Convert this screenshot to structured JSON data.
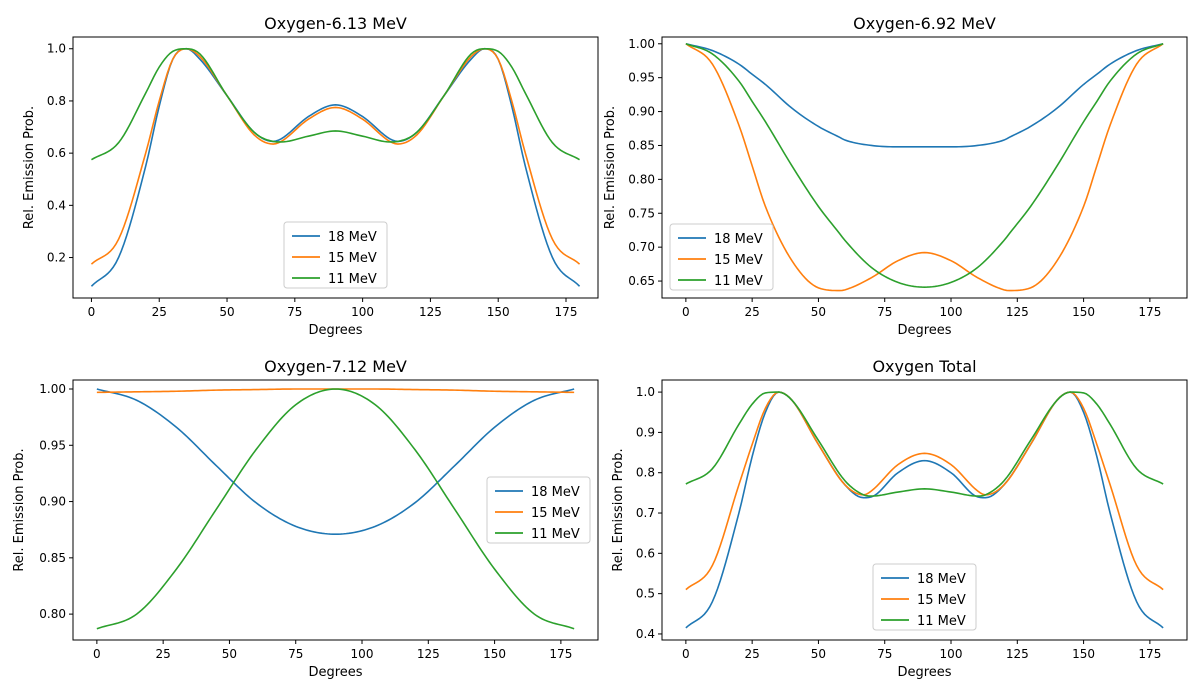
{
  "colors": {
    "series_18": "#1f77b4",
    "series_15": "#ff7f0e",
    "series_11": "#2ca02c",
    "axes": "#000000",
    "legend_border": "#cccccc"
  },
  "chart_data": [
    {
      "type": "line",
      "title": "Oxygen-6.13 MeV",
      "xlabel": "Degrees",
      "ylabel": "Rel. Emission Prob.",
      "xlim": [
        -6.8,
        186.8
      ],
      "ylim": [
        0.045,
        1.045
      ],
      "xticks": [
        0,
        25,
        50,
        75,
        100,
        125,
        150,
        175
      ],
      "yticks": [
        0.2,
        0.4,
        0.6,
        0.8,
        1.0
      ],
      "ytick_labels": [
        "0.2",
        "0.4",
        "0.6",
        "0.8",
        "1.0"
      ],
      "legend": {
        "location": "lower center",
        "entries": [
          "18 MeV",
          "15 MeV",
          "11 MeV"
        ]
      },
      "x": [
        0,
        10,
        20,
        25,
        30,
        35,
        40,
        50,
        60,
        67,
        70,
        80,
        90,
        100,
        110,
        113,
        120,
        130,
        140,
        145,
        150,
        155,
        160,
        170,
        180
      ],
      "series": [
        {
          "name": "18 MeV",
          "values": [
            0.09,
            0.2,
            0.55,
            0.78,
            0.96,
            1.0,
            0.96,
            0.82,
            0.68,
            0.645,
            0.655,
            0.74,
            0.785,
            0.74,
            0.655,
            0.645,
            0.68,
            0.82,
            0.96,
            1.0,
            0.96,
            0.78,
            0.55,
            0.2,
            0.09
          ]
        },
        {
          "name": "15 MeV",
          "values": [
            0.175,
            0.27,
            0.6,
            0.8,
            0.96,
            1.0,
            0.97,
            0.82,
            0.67,
            0.635,
            0.645,
            0.73,
            0.775,
            0.73,
            0.645,
            0.635,
            0.67,
            0.82,
            0.97,
            1.0,
            0.96,
            0.8,
            0.6,
            0.27,
            0.175
          ]
        },
        {
          "name": "11 MeV",
          "values": [
            0.575,
            0.64,
            0.83,
            0.93,
            0.99,
            1.0,
            0.98,
            0.82,
            0.68,
            0.645,
            0.643,
            0.665,
            0.685,
            0.665,
            0.643,
            0.645,
            0.68,
            0.82,
            0.98,
            1.0,
            0.99,
            0.93,
            0.83,
            0.64,
            0.575
          ]
        }
      ]
    },
    {
      "type": "line",
      "title": "Oxygen-6.92 MeV",
      "xlabel": "Degrees",
      "ylabel": "Rel. Emission Prob.",
      "xlim": [
        -9,
        189
      ],
      "ylim": [
        0.625,
        1.01
      ],
      "xticks": [
        0,
        25,
        50,
        75,
        100,
        125,
        150,
        175
      ],
      "yticks": [
        0.65,
        0.7,
        0.75,
        0.8,
        0.85,
        0.9,
        0.95,
        1.0
      ],
      "ytick_labels": [
        "0.65",
        "0.70",
        "0.75",
        "0.80",
        "0.85",
        "0.90",
        "0.95",
        "1.00"
      ],
      "legend": {
        "location": "lower left",
        "entries": [
          "18 MeV",
          "15 MeV",
          "11 MeV"
        ]
      },
      "x": [
        0,
        10,
        20,
        25,
        30,
        40,
        50,
        58,
        60,
        70,
        80,
        90,
        100,
        110,
        120,
        122,
        130,
        140,
        150,
        155,
        160,
        170,
        180
      ],
      "series": [
        {
          "name": "18 MeV",
          "values": [
            1.0,
            0.99,
            0.97,
            0.955,
            0.94,
            0.905,
            0.878,
            0.862,
            0.858,
            0.85,
            0.848,
            0.848,
            0.848,
            0.85,
            0.858,
            0.862,
            0.878,
            0.905,
            0.94,
            0.955,
            0.97,
            0.99,
            1.0
          ]
        },
        {
          "name": "15 MeV",
          "values": [
            1.0,
            0.97,
            0.88,
            0.82,
            0.76,
            0.68,
            0.64,
            0.636,
            0.637,
            0.655,
            0.68,
            0.692,
            0.68,
            0.655,
            0.637,
            0.636,
            0.64,
            0.68,
            0.76,
            0.82,
            0.88,
            0.97,
            1.0
          ]
        },
        {
          "name": "11 MeV",
          "values": [
            1.0,
            0.985,
            0.945,
            0.915,
            0.885,
            0.82,
            0.76,
            0.72,
            0.71,
            0.67,
            0.648,
            0.641,
            0.648,
            0.67,
            0.71,
            0.72,
            0.76,
            0.82,
            0.885,
            0.915,
            0.945,
            0.985,
            1.0
          ]
        }
      ]
    },
    {
      "type": "line",
      "title": "Oxygen-7.12 MeV",
      "xlabel": "Degrees",
      "ylabel": "Rel. Emission Prob.",
      "xlim": [
        -9,
        189
      ],
      "ylim": [
        0.777,
        1.008
      ],
      "xticks": [
        0,
        25,
        50,
        75,
        100,
        125,
        150,
        175
      ],
      "yticks": [
        0.8,
        0.85,
        0.9,
        0.95,
        1.0
      ],
      "ytick_labels": [
        "0.80",
        "0.85",
        "0.90",
        "0.95",
        "1.00"
      ],
      "legend": {
        "location": "center right",
        "entries": [
          "18 MeV",
          "15 MeV",
          "11 MeV"
        ]
      },
      "x": [
        0,
        15,
        30,
        45,
        60,
        75,
        90,
        105,
        120,
        135,
        150,
        165,
        180
      ],
      "series": [
        {
          "name": "18 MeV",
          "values": [
            1.0,
            0.99,
            0.966,
            0.932,
            0.899,
            0.878,
            0.871,
            0.878,
            0.899,
            0.932,
            0.966,
            0.99,
            1.0
          ]
        },
        {
          "name": "15 MeV",
          "values": [
            0.997,
            0.9975,
            0.998,
            0.999,
            0.9995,
            1.0,
            1.0,
            1.0,
            0.9995,
            0.999,
            0.998,
            0.9975,
            0.997
          ]
        },
        {
          "name": "11 MeV",
          "values": [
            0.787,
            0.8,
            0.84,
            0.893,
            0.946,
            0.986,
            1.0,
            0.986,
            0.946,
            0.893,
            0.84,
            0.8,
            0.787
          ]
        }
      ]
    },
    {
      "type": "line",
      "title": "Oxygen Total",
      "xlabel": "Degrees",
      "ylabel": "Rel. Emission Prob.",
      "xlim": [
        -9,
        189
      ],
      "ylim": [
        0.385,
        1.03
      ],
      "xticks": [
        0,
        25,
        50,
        75,
        100,
        125,
        150,
        175
      ],
      "yticks": [
        0.4,
        0.5,
        0.6,
        0.7,
        0.8,
        0.9,
        1.0
      ],
      "ytick_labels": [
        "0.4",
        "0.5",
        "0.6",
        "0.7",
        "0.8",
        "0.9",
        "1.0"
      ],
      "legend": {
        "location": "lower center",
        "entries": [
          "18 MeV",
          "15 MeV",
          "11 MeV"
        ]
      },
      "x": [
        0,
        10,
        20,
        25,
        30,
        35,
        40,
        50,
        60,
        67,
        70,
        80,
        90,
        100,
        110,
        113,
        120,
        130,
        140,
        145,
        150,
        155,
        160,
        170,
        180
      ],
      "series": [
        {
          "name": "18 MeV",
          "values": [
            0.415,
            0.48,
            0.7,
            0.84,
            0.95,
            1.0,
            0.98,
            0.87,
            0.77,
            0.738,
            0.74,
            0.8,
            0.83,
            0.8,
            0.74,
            0.738,
            0.77,
            0.87,
            0.98,
            1.0,
            0.95,
            0.84,
            0.7,
            0.48,
            0.415
          ]
        },
        {
          "name": "15 MeV",
          "values": [
            0.51,
            0.57,
            0.77,
            0.87,
            0.96,
            1.0,
            0.98,
            0.87,
            0.77,
            0.745,
            0.755,
            0.82,
            0.848,
            0.82,
            0.755,
            0.745,
            0.77,
            0.87,
            0.98,
            1.0,
            0.96,
            0.87,
            0.77,
            0.57,
            0.51
          ]
        },
        {
          "name": "11 MeV",
          "values": [
            0.772,
            0.81,
            0.92,
            0.97,
            0.998,
            1.0,
            0.98,
            0.88,
            0.78,
            0.745,
            0.742,
            0.752,
            0.76,
            0.752,
            0.742,
            0.745,
            0.78,
            0.88,
            0.98,
            1.0,
            0.998,
            0.97,
            0.92,
            0.81,
            0.772
          ]
        }
      ]
    }
  ]
}
